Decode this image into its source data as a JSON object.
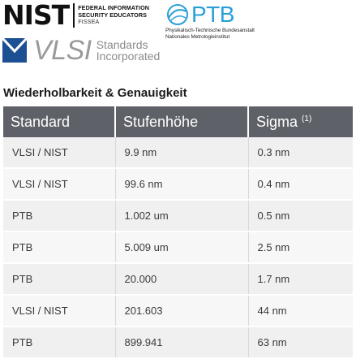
{
  "logos": {
    "nist": {
      "wordmark": "NIST",
      "line1": "FEDERAL INFORMATION",
      "line2": "SECURITY EDUCATORS",
      "line3": "FISSEA"
    },
    "ptb": {
      "wordmark": "PTB",
      "line1": "Physikalisch-Technische Bundesanstalt",
      "line2": "Nationales Metrologieinstitut",
      "color": "#2a9fd8"
    },
    "vlsi": {
      "wordmark": "VLSI",
      "line1": "Standards",
      "line2": "Incorporated",
      "color": "#1d4f93"
    }
  },
  "heading": "Wiederholbarkeit & Genauigkeit",
  "table": {
    "columns": {
      "standard": "Standard",
      "step_height": "Stufenhöhe",
      "sigma": "Sigma",
      "sigma_note": "(1)"
    },
    "rows": [
      {
        "standard": "VLSI / NIST",
        "step_height": "9.9 nm",
        "sigma": "0.3 nm"
      },
      {
        "standard": "VLSI / NIST",
        "step_height": "99.6 nm",
        "sigma": "0.4 nm"
      },
      {
        "standard": "PTB",
        "step_height": "1.002 um",
        "sigma": "0.5 nm"
      },
      {
        "standard": "PTB",
        "step_height": "5.009 um",
        "sigma": "2.5 nm"
      },
      {
        "standard": "PTB",
        "step_height": "20.000",
        "sigma": "1.7 nm"
      },
      {
        "standard": "VLSI / NIST",
        "step_height": "201.603",
        "sigma": "44 nm"
      },
      {
        "standard": "PTB",
        "step_height": "899.941",
        "sigma": "63 nm"
      }
    ]
  }
}
